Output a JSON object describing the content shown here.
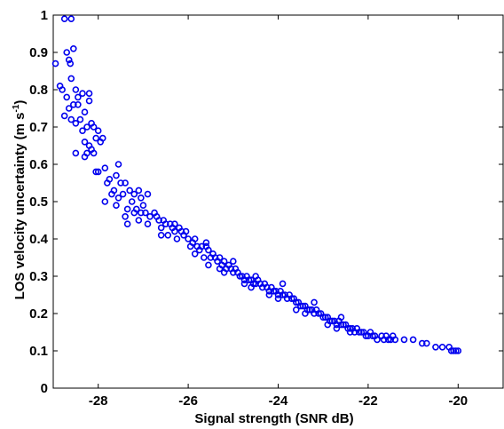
{
  "chart_data": {
    "type": "scatter",
    "title": "",
    "xlabel": "Signal strength (SNR dB)",
    "ylabel_main": "LOS velocity uncertainty (m s",
    "ylabel_sup": "-1",
    "ylabel_close": ")",
    "xlim": [
      -29,
      -19
    ],
    "ylim": [
      0,
      1
    ],
    "x_ticks": [
      -28,
      -26,
      -24,
      -22,
      -20
    ],
    "x_tick_labels": [
      "-28",
      "-26",
      "-24",
      "-22",
      "-20"
    ],
    "y_ticks": [
      0,
      0.1,
      0.2,
      0.3,
      0.4,
      0.5,
      0.6,
      0.7,
      0.8,
      0.9,
      1
    ],
    "y_tick_labels": [
      "0",
      "0.1",
      "0.2",
      "0.3",
      "0.4",
      "0.5",
      "0.6",
      "0.7",
      "0.8",
      "0.9",
      "1"
    ],
    "grid": false,
    "marker": "open-circle",
    "color": "#0000ee",
    "series": [
      {
        "points": [
          [
            -28.75,
            0.99
          ],
          [
            -28.6,
            0.99
          ],
          [
            -28.95,
            0.87
          ],
          [
            -28.7,
            0.9
          ],
          [
            -28.55,
            0.91
          ],
          [
            -28.62,
            0.87
          ],
          [
            -28.65,
            0.88
          ],
          [
            -28.85,
            0.81
          ],
          [
            -28.8,
            0.8
          ],
          [
            -28.7,
            0.78
          ],
          [
            -28.6,
            0.83
          ],
          [
            -28.5,
            0.8
          ],
          [
            -28.45,
            0.78
          ],
          [
            -28.35,
            0.79
          ],
          [
            -28.2,
            0.79
          ],
          [
            -28.75,
            0.73
          ],
          [
            -28.65,
            0.75
          ],
          [
            -28.55,
            0.76
          ],
          [
            -28.45,
            0.76
          ],
          [
            -28.3,
            0.74
          ],
          [
            -28.2,
            0.77
          ],
          [
            -28.6,
            0.72
          ],
          [
            -28.5,
            0.71
          ],
          [
            -28.4,
            0.72
          ],
          [
            -28.25,
            0.7
          ],
          [
            -28.15,
            0.71
          ],
          [
            -28.1,
            0.7
          ],
          [
            -28.35,
            0.69
          ],
          [
            -28.0,
            0.69
          ],
          [
            -28.3,
            0.66
          ],
          [
            -28.2,
            0.65
          ],
          [
            -28.05,
            0.67
          ],
          [
            -27.95,
            0.66
          ],
          [
            -28.15,
            0.64
          ],
          [
            -28.25,
            0.63
          ],
          [
            -27.9,
            0.67
          ],
          [
            -28.5,
            0.63
          ],
          [
            -28.3,
            0.62
          ],
          [
            -28.1,
            0.63
          ],
          [
            -28.0,
            0.58
          ],
          [
            -27.85,
            0.59
          ],
          [
            -28.05,
            0.58
          ],
          [
            -27.75,
            0.56
          ],
          [
            -27.6,
            0.57
          ],
          [
            -27.55,
            0.6
          ],
          [
            -27.8,
            0.55
          ],
          [
            -27.65,
            0.53
          ],
          [
            -27.5,
            0.55
          ],
          [
            -27.4,
            0.55
          ],
          [
            -27.7,
            0.52
          ],
          [
            -27.55,
            0.51
          ],
          [
            -27.45,
            0.52
          ],
          [
            -27.3,
            0.53
          ],
          [
            -27.2,
            0.52
          ],
          [
            -27.1,
            0.53
          ],
          [
            -27.05,
            0.51
          ],
          [
            -27.85,
            0.5
          ],
          [
            -27.6,
            0.49
          ],
          [
            -27.35,
            0.48
          ],
          [
            -27.25,
            0.5
          ],
          [
            -27.15,
            0.48
          ],
          [
            -27.0,
            0.49
          ],
          [
            -26.9,
            0.52
          ],
          [
            -27.4,
            0.46
          ],
          [
            -27.2,
            0.47
          ],
          [
            -27.05,
            0.47
          ],
          [
            -26.95,
            0.47
          ],
          [
            -26.85,
            0.46
          ],
          [
            -26.75,
            0.47
          ],
          [
            -26.7,
            0.46
          ],
          [
            -27.35,
            0.44
          ],
          [
            -27.1,
            0.45
          ],
          [
            -26.9,
            0.44
          ],
          [
            -26.65,
            0.45
          ],
          [
            -26.55,
            0.45
          ],
          [
            -26.5,
            0.44
          ],
          [
            -26.4,
            0.44
          ],
          [
            -26.6,
            0.43
          ],
          [
            -26.35,
            0.43
          ],
          [
            -26.3,
            0.42
          ],
          [
            -26.2,
            0.43
          ],
          [
            -26.15,
            0.42
          ],
          [
            -26.1,
            0.41
          ],
          [
            -26.05,
            0.42
          ],
          [
            -26.6,
            0.41
          ],
          [
            -26.45,
            0.41
          ],
          [
            -26.25,
            0.4
          ],
          [
            -26.0,
            0.4
          ],
          [
            -25.9,
            0.39
          ],
          [
            -25.85,
            0.4
          ],
          [
            -25.8,
            0.38
          ],
          [
            -25.95,
            0.38
          ],
          [
            -25.75,
            0.37
          ],
          [
            -25.7,
            0.38
          ],
          [
            -25.6,
            0.38
          ],
          [
            -25.55,
            0.37
          ],
          [
            -25.45,
            0.36
          ],
          [
            -25.5,
            0.35
          ],
          [
            -25.85,
            0.36
          ],
          [
            -25.65,
            0.35
          ],
          [
            -25.4,
            0.35
          ],
          [
            -25.35,
            0.34
          ],
          [
            -25.3,
            0.35
          ],
          [
            -25.25,
            0.33
          ],
          [
            -25.2,
            0.34
          ],
          [
            -25.55,
            0.33
          ],
          [
            -25.15,
            0.32
          ],
          [
            -25.1,
            0.33
          ],
          [
            -25.05,
            0.32
          ],
          [
            -25.0,
            0.31
          ],
          [
            -24.95,
            0.32
          ],
          [
            -24.9,
            0.31
          ],
          [
            -25.3,
            0.32
          ],
          [
            -25.2,
            0.31
          ],
          [
            -24.85,
            0.3
          ],
          [
            -24.8,
            0.3
          ],
          [
            -24.75,
            0.29
          ],
          [
            -24.7,
            0.3
          ],
          [
            -24.65,
            0.29
          ],
          [
            -24.6,
            0.29
          ],
          [
            -24.55,
            0.28
          ],
          [
            -24.5,
            0.28
          ],
          [
            -24.45,
            0.29
          ],
          [
            -24.4,
            0.28
          ],
          [
            -24.35,
            0.27
          ],
          [
            -24.3,
            0.28
          ],
          [
            -24.75,
            0.28
          ],
          [
            -24.6,
            0.27
          ],
          [
            -24.25,
            0.27
          ],
          [
            -24.2,
            0.26
          ],
          [
            -24.15,
            0.27
          ],
          [
            -24.1,
            0.26
          ],
          [
            -24.05,
            0.26
          ],
          [
            -24.0,
            0.25
          ],
          [
            -23.95,
            0.26
          ],
          [
            -23.9,
            0.25
          ],
          [
            -23.85,
            0.25
          ],
          [
            -23.8,
            0.24
          ],
          [
            -23.75,
            0.25
          ],
          [
            -23.7,
            0.24
          ],
          [
            -24.2,
            0.25
          ],
          [
            -24.0,
            0.24
          ],
          [
            -23.65,
            0.24
          ],
          [
            -23.6,
            0.23
          ],
          [
            -23.55,
            0.23
          ],
          [
            -23.5,
            0.22
          ],
          [
            -23.45,
            0.22
          ],
          [
            -23.4,
            0.22
          ],
          [
            -23.35,
            0.21
          ],
          [
            -23.3,
            0.21
          ],
          [
            -23.25,
            0.21
          ],
          [
            -23.2,
            0.2
          ],
          [
            -23.15,
            0.21
          ],
          [
            -23.1,
            0.2
          ],
          [
            -23.6,
            0.21
          ],
          [
            -23.4,
            0.2
          ],
          [
            -23.05,
            0.2
          ],
          [
            -23.0,
            0.19
          ],
          [
            -22.95,
            0.19
          ],
          [
            -22.9,
            0.19
          ],
          [
            -22.85,
            0.18
          ],
          [
            -22.8,
            0.18
          ],
          [
            -22.75,
            0.18
          ],
          [
            -22.7,
            0.17
          ],
          [
            -22.65,
            0.18
          ],
          [
            -22.6,
            0.17
          ],
          [
            -22.55,
            0.17
          ],
          [
            -22.5,
            0.17
          ],
          [
            -22.9,
            0.17
          ],
          [
            -22.7,
            0.16
          ],
          [
            -22.45,
            0.16
          ],
          [
            -22.4,
            0.16
          ],
          [
            -22.35,
            0.16
          ],
          [
            -22.3,
            0.15
          ],
          [
            -22.25,
            0.16
          ],
          [
            -22.2,
            0.15
          ],
          [
            -22.15,
            0.15
          ],
          [
            -22.1,
            0.15
          ],
          [
            -22.05,
            0.14
          ],
          [
            -22.0,
            0.14
          ],
          [
            -21.95,
            0.15
          ],
          [
            -21.9,
            0.14
          ],
          [
            -22.4,
            0.15
          ],
          [
            -21.85,
            0.14
          ],
          [
            -21.8,
            0.13
          ],
          [
            -21.7,
            0.14
          ],
          [
            -21.65,
            0.13
          ],
          [
            -21.6,
            0.14
          ],
          [
            -21.55,
            0.13
          ],
          [
            -21.5,
            0.13
          ],
          [
            -21.45,
            0.14
          ],
          [
            -21.4,
            0.13
          ],
          [
            -21.2,
            0.13
          ],
          [
            -21.0,
            0.13
          ],
          [
            -20.8,
            0.12
          ],
          [
            -20.7,
            0.12
          ],
          [
            -20.5,
            0.11
          ],
          [
            -20.35,
            0.11
          ],
          [
            -20.2,
            0.11
          ],
          [
            -20.1,
            0.1
          ],
          [
            -20.05,
            0.1
          ],
          [
            -20.0,
            0.1
          ],
          [
            -20.15,
            0.1
          ],
          [
            -22.6,
            0.19
          ],
          [
            -23.2,
            0.23
          ],
          [
            -23.9,
            0.28
          ],
          [
            -24.5,
            0.3
          ],
          [
            -25.0,
            0.34
          ],
          [
            -25.6,
            0.39
          ],
          [
            -26.3,
            0.44
          ]
        ]
      }
    ]
  }
}
